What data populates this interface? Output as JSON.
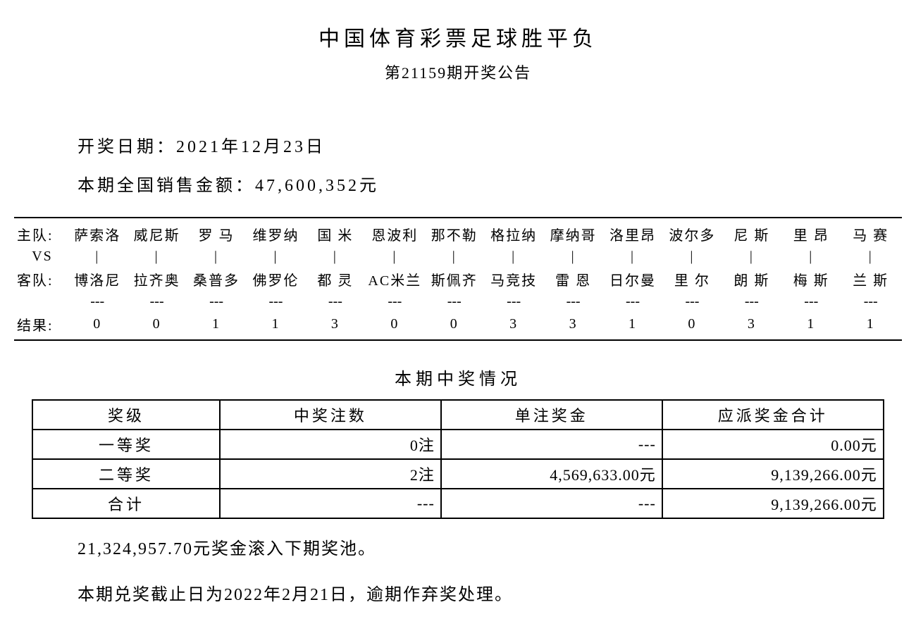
{
  "header": {
    "title": "中国体育彩票足球胜平负",
    "subtitle": "第21159期开奖公告"
  },
  "info": {
    "date_label": "开奖日期：",
    "date_value": "2021年12月23日",
    "sales_label": "本期全国销售金额：",
    "sales_value": "47,600,352元"
  },
  "match": {
    "row_labels": {
      "home": "主队:",
      "vs": "VS",
      "away": "客队:",
      "result": "结果:"
    },
    "home_teams": [
      "萨索洛",
      "威尼斯",
      "罗 马",
      "维罗纳",
      "国 米",
      "恩波利",
      "那不勒",
      "格拉纳",
      "摩纳哥",
      "洛里昂",
      "波尔多",
      "尼 斯",
      "里 昂",
      "马 赛"
    ],
    "vs_marks": [
      "|",
      "|",
      "|",
      "|",
      "|",
      "|",
      "|",
      "|",
      "|",
      "|",
      "|",
      "|",
      "|",
      "|"
    ],
    "away_teams": [
      "博洛尼",
      "拉齐奥",
      "桑普多",
      "佛罗伦",
      "都 灵",
      "AC米兰",
      "斯佩齐",
      "马竞技",
      "雷 恩",
      "日尔曼",
      "里 尔",
      "朗 斯",
      "梅 斯",
      "兰 斯"
    ],
    "dashes": [
      "---",
      "---",
      "---",
      "---",
      "---",
      "---",
      "---",
      "---",
      "---",
      "---",
      "---",
      "---",
      "---",
      "---"
    ],
    "results": [
      "0",
      "0",
      "1",
      "1",
      "3",
      "0",
      "0",
      "3",
      "3",
      "1",
      "0",
      "3",
      "1",
      "1"
    ]
  },
  "prize_section_title": "本期中奖情况",
  "prize_table": {
    "columns": [
      "奖级",
      "中奖注数",
      "单注奖金",
      "应派奖金合计"
    ],
    "rows": [
      {
        "level": "一等奖",
        "count": "0注",
        "unit": "---",
        "total": "0.00元"
      },
      {
        "level": "二等奖",
        "count": "2注",
        "unit": "4,569,633.00元",
        "total": "9,139,266.00元"
      },
      {
        "level": "合计",
        "count": "---",
        "unit": "---",
        "total": "9,139,266.00元"
      }
    ],
    "col_widths": [
      "22%",
      "26%",
      "26%",
      "26%"
    ]
  },
  "footer": {
    "rollover": "21,324,957.70元奖金滚入下期奖池。",
    "deadline": "本期兑奖截止日为2022年2月21日，逾期作弃奖处理。"
  },
  "style": {
    "background_color": "#ffffff",
    "text_color": "#000000",
    "border_color": "#000000",
    "title_fontsize": 30,
    "body_fontsize": 22,
    "match_fontsize": 20
  }
}
